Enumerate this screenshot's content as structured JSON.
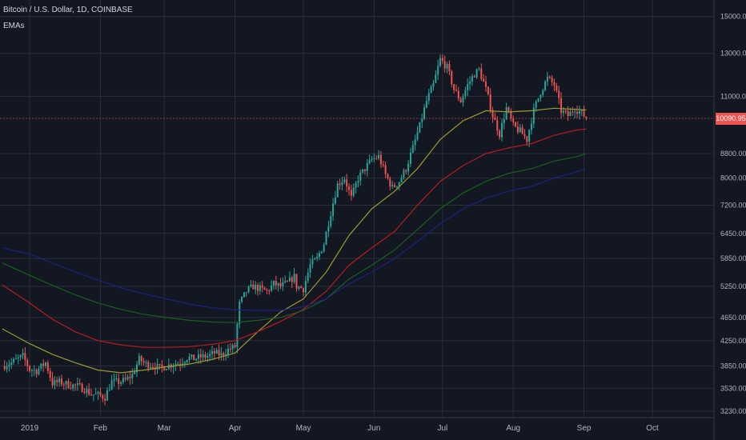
{
  "header": {
    "title": "Bitcoin / U.S. Dollar, 1D, COINBASE",
    "indicator": "EMAs"
  },
  "colors": {
    "background": "#131722",
    "grid": "#2a2e39",
    "axis_text": "#b2b5be",
    "up": "#26a69a",
    "down": "#ef5350",
    "ema_yellow": "#9c9a2c",
    "ema_red": "#b71c1c",
    "ema_green": "#1b5e20",
    "ema_blue": "#1a237e"
  },
  "chart_data": {
    "type": "candlestick",
    "scale": "log",
    "x_ticks": [
      {
        "day": 0,
        "label": "2019"
      },
      {
        "day": 31,
        "label": "Feb"
      },
      {
        "day": 59,
        "label": "Mar"
      },
      {
        "day": 90,
        "label": "Apr"
      },
      {
        "day": 120,
        "label": "May"
      },
      {
        "day": 151,
        "label": "Jun"
      },
      {
        "day": 181,
        "label": "Jul"
      },
      {
        "day": 212,
        "label": "Aug"
      },
      {
        "day": 243,
        "label": "Sep"
      },
      {
        "day": 273,
        "label": "Oct"
      }
    ],
    "y_ticks": [
      15000,
      13000,
      11000,
      8800,
      8000,
      7200,
      6450,
      5850,
      5250,
      4650,
      4250,
      3850,
      3530,
      3230
    ],
    "y_tick_labels": [
      "15000.00",
      "13000.00",
      "11000.00",
      "8800.00",
      "8000.00",
      "7200.00",
      "6450.00",
      "5850.00",
      "5250.00",
      "4650.00",
      "4250.00",
      "3850.00",
      "3530.00",
      "3230.00"
    ],
    "ylim": [
      3150,
      16000
    ],
    "xlim": [
      -13,
      300
    ],
    "last_price": 10090.95,
    "last_price_label": "10090.95",
    "close_anchors": [
      [
        -12,
        3850
      ],
      [
        -8,
        3900
      ],
      [
        -3,
        4000
      ],
      [
        0,
        3800
      ],
      [
        3,
        3780
      ],
      [
        7,
        3900
      ],
      [
        10,
        3600
      ],
      [
        13,
        3620
      ],
      [
        17,
        3580
      ],
      [
        21,
        3560
      ],
      [
        24,
        3520
      ],
      [
        27,
        3450
      ],
      [
        30,
        3440
      ],
      [
        33,
        3410
      ],
      [
        36,
        3620
      ],
      [
        39,
        3620
      ],
      [
        42,
        3640
      ],
      [
        45,
        3720
      ],
      [
        48,
        3950
      ],
      [
        51,
        3880
      ],
      [
        54,
        3860
      ],
      [
        57,
        3820
      ],
      [
        60,
        3850
      ],
      [
        63,
        3880
      ],
      [
        66,
        3900
      ],
      [
        69,
        3980
      ],
      [
        72,
        3960
      ],
      [
        75,
        3990
      ],
      [
        78,
        4000
      ],
      [
        81,
        4050
      ],
      [
        84,
        4020
      ],
      [
        87,
        4100
      ],
      [
        90,
        4150
      ],
      [
        92,
        4900
      ],
      [
        95,
        5150
      ],
      [
        98,
        5250
      ],
      [
        101,
        5200
      ],
      [
        104,
        5150
      ],
      [
        107,
        5300
      ],
      [
        110,
        5250
      ],
      [
        113,
        5320
      ],
      [
        116,
        5450
      ],
      [
        117,
        5250
      ],
      [
        120,
        5200
      ],
      [
        123,
        5700
      ],
      [
        126,
        5850
      ],
      [
        129,
        6200
      ],
      [
        132,
        7000
      ],
      [
        135,
        7800
      ],
      [
        138,
        8000
      ],
      [
        141,
        7400
      ],
      [
        144,
        8000
      ],
      [
        147,
        8300
      ],
      [
        150,
        8600
      ],
      [
        153,
        8700
      ],
      [
        156,
        8100
      ],
      [
        159,
        7700
      ],
      [
        162,
        7900
      ],
      [
        165,
        8300
      ],
      [
        168,
        9000
      ],
      [
        171,
        9800
      ],
      [
        174,
        10800
      ],
      [
        177,
        11500
      ],
      [
        180,
        12700
      ],
      [
        183,
        12300
      ],
      [
        186,
        11300
      ],
      [
        189,
        10800
      ],
      [
        192,
        11500
      ],
      [
        195,
        12000
      ],
      [
        197,
        12200
      ],
      [
        200,
        11300
      ],
      [
        203,
        10200
      ],
      [
        206,
        9500
      ],
      [
        209,
        10500
      ],
      [
        212,
        9800
      ],
      [
        215,
        9600
      ],
      [
        218,
        9300
      ],
      [
        221,
        10400
      ],
      [
        224,
        11200
      ],
      [
        227,
        11800
      ],
      [
        230,
        11500
      ],
      [
        233,
        10400
      ],
      [
        236,
        10200
      ],
      [
        239,
        10500
      ],
      [
        242,
        10300
      ],
      [
        244,
        10090.95
      ]
    ],
    "series": [
      {
        "name": "EMA",
        "color": "#9c9a2c",
        "points": [
          [
            -12,
            4450
          ],
          [
            0,
            4200
          ],
          [
            10,
            4030
          ],
          [
            20,
            3900
          ],
          [
            30,
            3790
          ],
          [
            40,
            3750
          ],
          [
            50,
            3790
          ],
          [
            60,
            3840
          ],
          [
            70,
            3880
          ],
          [
            80,
            3950
          ],
          [
            90,
            4050
          ],
          [
            100,
            4400
          ],
          [
            110,
            4750
          ],
          [
            120,
            5000
          ],
          [
            130,
            5550
          ],
          [
            140,
            6400
          ],
          [
            150,
            7100
          ],
          [
            160,
            7600
          ],
          [
            170,
            8300
          ],
          [
            180,
            9300
          ],
          [
            190,
            10000
          ],
          [
            200,
            10400
          ],
          [
            210,
            10350
          ],
          [
            220,
            10400
          ],
          [
            230,
            10500
          ],
          [
            240,
            10450
          ],
          [
            244,
            10430
          ]
        ]
      },
      {
        "name": "EMA",
        "color": "#b71c1c",
        "points": [
          [
            -12,
            5280
          ],
          [
            0,
            4920
          ],
          [
            10,
            4620
          ],
          [
            20,
            4400
          ],
          [
            30,
            4250
          ],
          [
            40,
            4180
          ],
          [
            50,
            4140
          ],
          [
            60,
            4140
          ],
          [
            70,
            4150
          ],
          [
            80,
            4190
          ],
          [
            90,
            4250
          ],
          [
            100,
            4400
          ],
          [
            110,
            4580
          ],
          [
            120,
            4800
          ],
          [
            130,
            5150
          ],
          [
            140,
            5700
          ],
          [
            150,
            6100
          ],
          [
            160,
            6500
          ],
          [
            170,
            7200
          ],
          [
            180,
            7900
          ],
          [
            190,
            8400
          ],
          [
            200,
            8800
          ],
          [
            210,
            9000
          ],
          [
            220,
            9150
          ],
          [
            230,
            9450
          ],
          [
            240,
            9650
          ],
          [
            244,
            9680
          ]
        ]
      },
      {
        "name": "EMA",
        "color": "#1b5e20",
        "points": [
          [
            -12,
            5750
          ],
          [
            0,
            5480
          ],
          [
            10,
            5270
          ],
          [
            20,
            5080
          ],
          [
            30,
            4920
          ],
          [
            40,
            4800
          ],
          [
            50,
            4710
          ],
          [
            60,
            4650
          ],
          [
            70,
            4600
          ],
          [
            80,
            4570
          ],
          [
            90,
            4560
          ],
          [
            100,
            4600
          ],
          [
            110,
            4650
          ],
          [
            120,
            4780
          ],
          [
            130,
            5000
          ],
          [
            140,
            5400
          ],
          [
            150,
            5700
          ],
          [
            160,
            6050
          ],
          [
            170,
            6550
          ],
          [
            180,
            7100
          ],
          [
            190,
            7550
          ],
          [
            200,
            7900
          ],
          [
            210,
            8150
          ],
          [
            220,
            8300
          ],
          [
            230,
            8550
          ],
          [
            240,
            8700
          ],
          [
            244,
            8800
          ]
        ]
      },
      {
        "name": "EMA",
        "color": "#1a237e",
        "points": [
          [
            -12,
            6100
          ],
          [
            0,
            5950
          ],
          [
            10,
            5750
          ],
          [
            20,
            5550
          ],
          [
            30,
            5380
          ],
          [
            40,
            5220
          ],
          [
            50,
            5100
          ],
          [
            60,
            5000
          ],
          [
            70,
            4900
          ],
          [
            80,
            4830
          ],
          [
            90,
            4790
          ],
          [
            100,
            4780
          ],
          [
            110,
            4780
          ],
          [
            120,
            4850
          ],
          [
            130,
            5000
          ],
          [
            140,
            5300
          ],
          [
            150,
            5550
          ],
          [
            160,
            5850
          ],
          [
            170,
            6250
          ],
          [
            180,
            6700
          ],
          [
            190,
            7100
          ],
          [
            200,
            7400
          ],
          [
            210,
            7600
          ],
          [
            220,
            7750
          ],
          [
            230,
            8000
          ],
          [
            240,
            8200
          ],
          [
            244,
            8300
          ]
        ]
      }
    ]
  }
}
